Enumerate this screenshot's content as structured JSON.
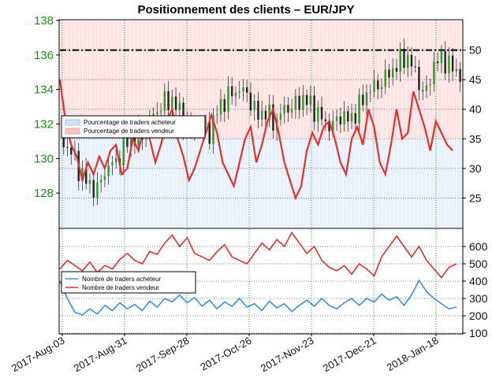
{
  "chart_data": {
    "title": "Positionnement des clients – EUR/JPY",
    "x_tick_labels": [
      "2017-Aug-03",
      "2017-Aug-31",
      "2017-Sep-28",
      "2017-Oct-26",
      "2017-Nov-23",
      "2017-Dec-21",
      "2018-Jan-18"
    ],
    "top_panel": {
      "type": "candlestick+line",
      "price_axis": {
        "side": "left",
        "ticks": [
          128,
          130,
          132,
          134,
          136,
          138
        ],
        "range": [
          126,
          138
        ]
      },
      "percent_axis": {
        "side": "right",
        "ticks": [
          25,
          30,
          35,
          40,
          45,
          50
        ],
        "range": [
          20,
          55
        ]
      },
      "reference_line": 50,
      "legend": {
        "position": "middle-left",
        "entries": [
          "Pourcentage de traders acheteur",
          "Pourcentage de traders vendeur"
        ]
      },
      "price_close_points": [
        [
          0,
          131.0
        ],
        [
          5,
          130.6
        ],
        [
          10,
          129.4
        ],
        [
          15,
          128.5
        ],
        [
          20,
          128.2
        ],
        [
          25,
          129.5
        ],
        [
          30,
          129.8
        ],
        [
          35,
          130.9
        ],
        [
          40,
          131.2
        ],
        [
          45,
          131.5
        ],
        [
          50,
          132.5
        ],
        [
          55,
          133.2
        ],
        [
          60,
          133.4
        ],
        [
          65,
          132.5
        ],
        [
          70,
          131.5
        ],
        [
          75,
          132.0
        ],
        [
          80,
          131.5
        ],
        [
          85,
          133.0
        ],
        [
          90,
          133.6
        ],
        [
          95,
          134.0
        ],
        [
          100,
          133.8
        ],
        [
          105,
          132.5
        ],
        [
          110,
          132.7
        ],
        [
          115,
          132.0
        ],
        [
          120,
          132.9
        ],
        [
          125,
          133.0
        ],
        [
          130,
          133.5
        ],
        [
          135,
          133.0
        ],
        [
          140,
          132.3
        ],
        [
          145,
          131.8
        ],
        [
          150,
          132.5
        ],
        [
          155,
          132.2
        ],
        [
          160,
          133.0
        ],
        [
          165,
          134.0
        ],
        [
          170,
          134.2
        ],
        [
          175,
          134.8
        ],
        [
          180,
          135.4
        ],
        [
          185,
          136.0
        ],
        [
          190,
          135.0
        ],
        [
          195,
          133.5
        ],
        [
          200,
          135.5
        ],
        [
          205,
          135.8
        ],
        [
          210,
          135.2
        ],
        [
          215,
          134.8
        ]
      ],
      "series": [
        {
          "name": "Pourcentage de traders vendeur",
          "color": "#e03030",
          "points": [
            [
              0,
              45
            ],
            [
              3,
              38
            ],
            [
              6,
              34
            ],
            [
              9,
              32
            ],
            [
              12,
              28
            ],
            [
              15,
              31
            ],
            [
              18,
              29
            ],
            [
              21,
              32
            ],
            [
              24,
              30
            ],
            [
              27,
              33
            ],
            [
              30,
              34
            ],
            [
              33,
              29
            ],
            [
              36,
              30
            ],
            [
              39,
              35
            ],
            [
              42,
              33
            ],
            [
              45,
              37
            ],
            [
              48,
              35
            ],
            [
              51,
              31
            ],
            [
              54,
              34
            ],
            [
              57,
              38
            ],
            [
              60,
              40
            ],
            [
              63,
              35
            ],
            [
              66,
              32
            ],
            [
              69,
              28
            ],
            [
              72,
              30
            ],
            [
              75,
              33
            ],
            [
              78,
              36
            ],
            [
              81,
              39
            ],
            [
              84,
              36
            ],
            [
              87,
              31
            ],
            [
              90,
              29
            ],
            [
              93,
              27
            ],
            [
              96,
              31
            ],
            [
              99,
              35
            ],
            [
              102,
              37
            ],
            [
              105,
              31
            ],
            [
              108,
              34
            ],
            [
              111,
              38
            ],
            [
              114,
              40
            ],
            [
              117,
              36
            ],
            [
              120,
              31
            ],
            [
              123,
              28
            ],
            [
              126,
              25
            ],
            [
              129,
              27
            ],
            [
              132,
              33
            ],
            [
              135,
              36
            ],
            [
              138,
              34
            ],
            [
              141,
              37
            ],
            [
              144,
              38
            ],
            [
              147,
              35
            ],
            [
              150,
              31
            ],
            [
              153,
              29
            ],
            [
              156,
              35
            ],
            [
              159,
              37
            ],
            [
              162,
              34
            ],
            [
              165,
              40
            ],
            [
              168,
              37
            ],
            [
              171,
              31
            ],
            [
              174,
              29
            ],
            [
              177,
              34
            ],
            [
              180,
              40
            ],
            [
              183,
              35
            ],
            [
              186,
              36
            ],
            [
              189,
              43
            ],
            [
              192,
              40
            ],
            [
              195,
              37
            ],
            [
              198,
              33
            ],
            [
              201,
              38
            ],
            [
              204,
              36
            ],
            [
              207,
              34
            ],
            [
              210,
              33
            ]
          ]
        },
        {
          "name": "Pourcentage de traders acheteur",
          "color": "#cfe2f7"
        }
      ]
    },
    "bottom_panel": {
      "type": "line",
      "axis": {
        "side": "right",
        "ticks": [
          100,
          200,
          300,
          400,
          500,
          600
        ],
        "range": [
          100,
          700
        ]
      },
      "legend": {
        "position": "middle-left",
        "entries": [
          "Nombre de traders acheteur",
          "Nombre de traders vendeur"
        ]
      },
      "series": [
        {
          "name": "Nombre de traders acheteur",
          "color": "#3b8fe0",
          "points": [
            [
              0,
              400
            ],
            [
              4,
              300
            ],
            [
              8,
              220
            ],
            [
              12,
              205
            ],
            [
              16,
              240
            ],
            [
              20,
              210
            ],
            [
              24,
              260
            ],
            [
              28,
              230
            ],
            [
              32,
              275
            ],
            [
              36,
              240
            ],
            [
              40,
              265
            ],
            [
              44,
              230
            ],
            [
              48,
              285
            ],
            [
              52,
              250
            ],
            [
              56,
              300
            ],
            [
              60,
              280
            ],
            [
              64,
              320
            ],
            [
              68,
              275
            ],
            [
              72,
              305
            ],
            [
              76,
              255
            ],
            [
              80,
              290
            ],
            [
              84,
              240
            ],
            [
              88,
              280
            ],
            [
              92,
              255
            ],
            [
              96,
              300
            ],
            [
              100,
              250
            ],
            [
              104,
              270
            ],
            [
              108,
              230
            ],
            [
              112,
              285
            ],
            [
              116,
              245
            ],
            [
              120,
              270
            ],
            [
              124,
              225
            ],
            [
              128,
              260
            ],
            [
              132,
              290
            ],
            [
              136,
              255
            ],
            [
              140,
              300
            ],
            [
              144,
              260
            ],
            [
              148,
              240
            ],
            [
              152,
              275
            ],
            [
              156,
              300
            ],
            [
              160,
              260
            ],
            [
              164,
              300
            ],
            [
              168,
              280
            ],
            [
              172,
              325
            ],
            [
              176,
              290
            ],
            [
              180,
              310
            ],
            [
              184,
              260
            ],
            [
              188,
              320
            ],
            [
              192,
              405
            ],
            [
              196,
              340
            ],
            [
              200,
              300
            ],
            [
              204,
              270
            ],
            [
              208,
              240
            ],
            [
              212,
              250
            ]
          ]
        },
        {
          "name": "Nombre de traders vendeur",
          "color": "#e03030",
          "points": [
            [
              0,
              470
            ],
            [
              4,
              520
            ],
            [
              8,
              490
            ],
            [
              12,
              460
            ],
            [
              16,
              510
            ],
            [
              20,
              450
            ],
            [
              24,
              490
            ],
            [
              28,
              470
            ],
            [
              32,
              525
            ],
            [
              36,
              560
            ],
            [
              40,
              520
            ],
            [
              44,
              500
            ],
            [
              48,
              570
            ],
            [
              52,
              555
            ],
            [
              56,
              620
            ],
            [
              60,
              665
            ],
            [
              64,
              600
            ],
            [
              68,
              650
            ],
            [
              72,
              560
            ],
            [
              76,
              540
            ],
            [
              80,
              520
            ],
            [
              84,
              570
            ],
            [
              88,
              610
            ],
            [
              92,
              540
            ],
            [
              96,
              520
            ],
            [
              100,
              500
            ],
            [
              104,
              560
            ],
            [
              108,
              620
            ],
            [
              112,
              580
            ],
            [
              116,
              640
            ],
            [
              120,
              600
            ],
            [
              124,
              680
            ],
            [
              128,
              620
            ],
            [
              132,
              560
            ],
            [
              136,
              600
            ],
            [
              140,
              520
            ],
            [
              144,
              480
            ],
            [
              148,
              460
            ],
            [
              152,
              490
            ],
            [
              156,
              440
            ],
            [
              160,
              500
            ],
            [
              164,
              470
            ],
            [
              168,
              430
            ],
            [
              172,
              540
            ],
            [
              176,
              600
            ],
            [
              180,
              660
            ],
            [
              184,
              600
            ],
            [
              188,
              540
            ],
            [
              192,
              600
            ],
            [
              196,
              520
            ],
            [
              200,
              470
            ],
            [
              204,
              420
            ],
            [
              208,
              480
            ],
            [
              212,
              500
            ]
          ]
        }
      ]
    }
  }
}
